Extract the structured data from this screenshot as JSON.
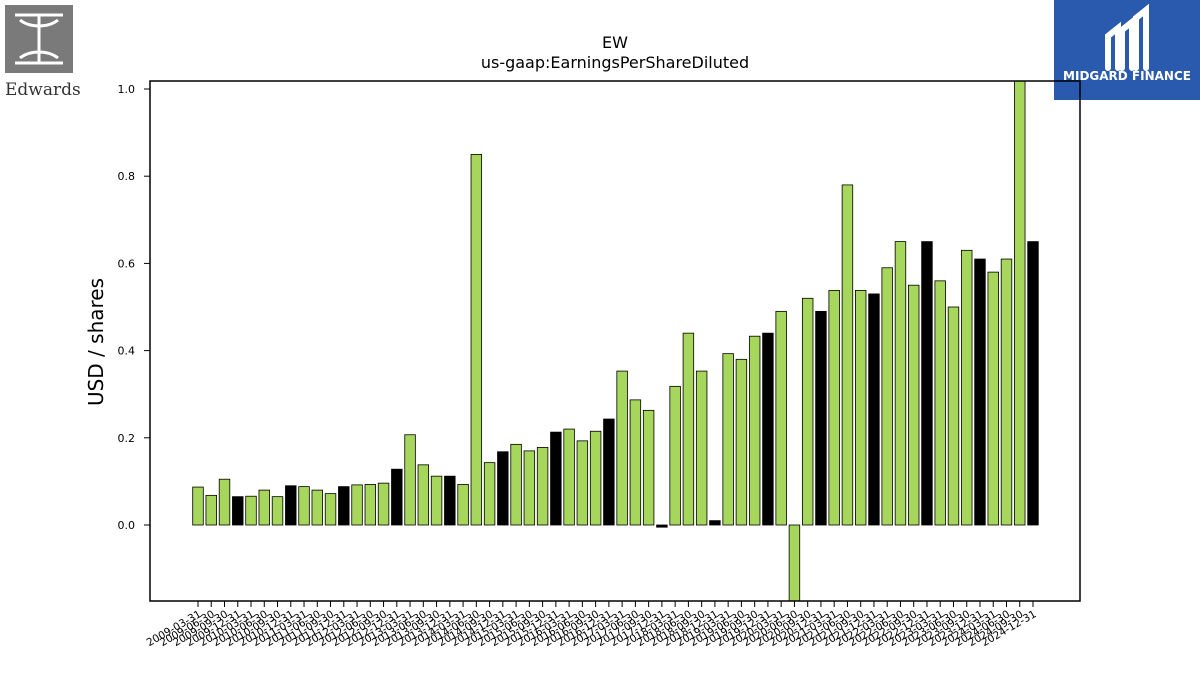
{
  "logos": {
    "left_text": "Edwards",
    "right_text": "MIDGARD FINANCE",
    "right_bg": "#2a5aad"
  },
  "chart_data": {
    "type": "bar",
    "title": "EW",
    "subtitle": "us-gaap:EarningsPerShareDiluted",
    "xlabel": "",
    "ylabel": "USD / shares",
    "ylim": [
      -0.17,
      1.02
    ],
    "yticks": [
      0.0,
      0.2,
      0.4,
      0.6,
      0.8,
      1.0
    ],
    "ytick_labels": [
      "0.0",
      "0.2",
      "0.4",
      "0.6",
      "0.8",
      "1.0"
    ],
    "grid": false,
    "legend": "none",
    "colors": {
      "default": "#a6d65c",
      "q4": "#000000",
      "edge": "#000000"
    },
    "categories": [
      "2009-03-31",
      "2009-06-30",
      "2009-09-30",
      "2009-12-31",
      "2010-03-31",
      "2010-06-30",
      "2010-09-30",
      "2010-12-31",
      "2011-03-31",
      "2011-06-30",
      "2011-09-30",
      "2011-12-31",
      "2012-03-31",
      "2012-06-30",
      "2012-09-30",
      "2012-12-31",
      "2013-03-31",
      "2013-06-30",
      "2013-09-30",
      "2013-12-31",
      "2014-03-31",
      "2014-06-30",
      "2014-09-30",
      "2014-12-31",
      "2015-03-31",
      "2015-06-30",
      "2015-09-30",
      "2015-12-31",
      "2016-03-31",
      "2016-06-30",
      "2016-09-30",
      "2016-12-31",
      "2017-03-31",
      "2017-06-30",
      "2017-09-30",
      "2017-12-31",
      "2018-03-31",
      "2018-06-30",
      "2018-09-30",
      "2018-12-31",
      "2019-03-31",
      "2019-06-30",
      "2019-09-30",
      "2019-12-31",
      "2020-03-31",
      "2020-06-30",
      "2020-09-30",
      "2020-12-31",
      "2021-03-31",
      "2021-06-30",
      "2021-09-30",
      "2021-12-31",
      "2022-03-31",
      "2022-06-30",
      "2022-09-30",
      "2022-12-31",
      "2023-03-31",
      "2023-06-30",
      "2023-09-30",
      "2023-12-31",
      "2024-03-31",
      "2024-06-30",
      "2024-09-30",
      "2024-12-31"
    ],
    "values": [
      0.087,
      0.068,
      0.105,
      0.065,
      0.066,
      0.08,
      0.065,
      0.09,
      0.088,
      0.08,
      0.072,
      0.088,
      0.092,
      0.093,
      0.096,
      0.128,
      0.207,
      0.138,
      0.112,
      0.112,
      0.093,
      0.85,
      0.143,
      0.168,
      0.185,
      0.17,
      0.178,
      0.213,
      0.22,
      0.193,
      0.215,
      0.243,
      0.353,
      0.287,
      0.263,
      -0.005,
      0.318,
      0.44,
      0.353,
      0.01,
      0.393,
      0.38,
      0.433,
      0.44,
      0.49,
      -0.18,
      0.52,
      0.49,
      0.538,
      0.78,
      0.538,
      0.53,
      0.59,
      0.65,
      0.55,
      0.65,
      0.56,
      0.5,
      0.63,
      0.61,
      0.58,
      0.61,
      1.02,
      0.65
    ],
    "q4_flags": [
      0,
      0,
      0,
      1,
      0,
      0,
      0,
      1,
      0,
      0,
      0,
      1,
      0,
      0,
      0,
      1,
      0,
      0,
      0,
      1,
      0,
      0,
      0,
      1,
      0,
      0,
      0,
      1,
      0,
      0,
      0,
      1,
      0,
      0,
      0,
      1,
      0,
      0,
      0,
      1,
      0,
      0,
      0,
      1,
      0,
      0,
      0,
      1,
      0,
      0,
      0,
      1,
      0,
      0,
      0,
      1,
      0,
      0,
      0,
      1,
      0,
      0,
      0,
      1
    ]
  }
}
